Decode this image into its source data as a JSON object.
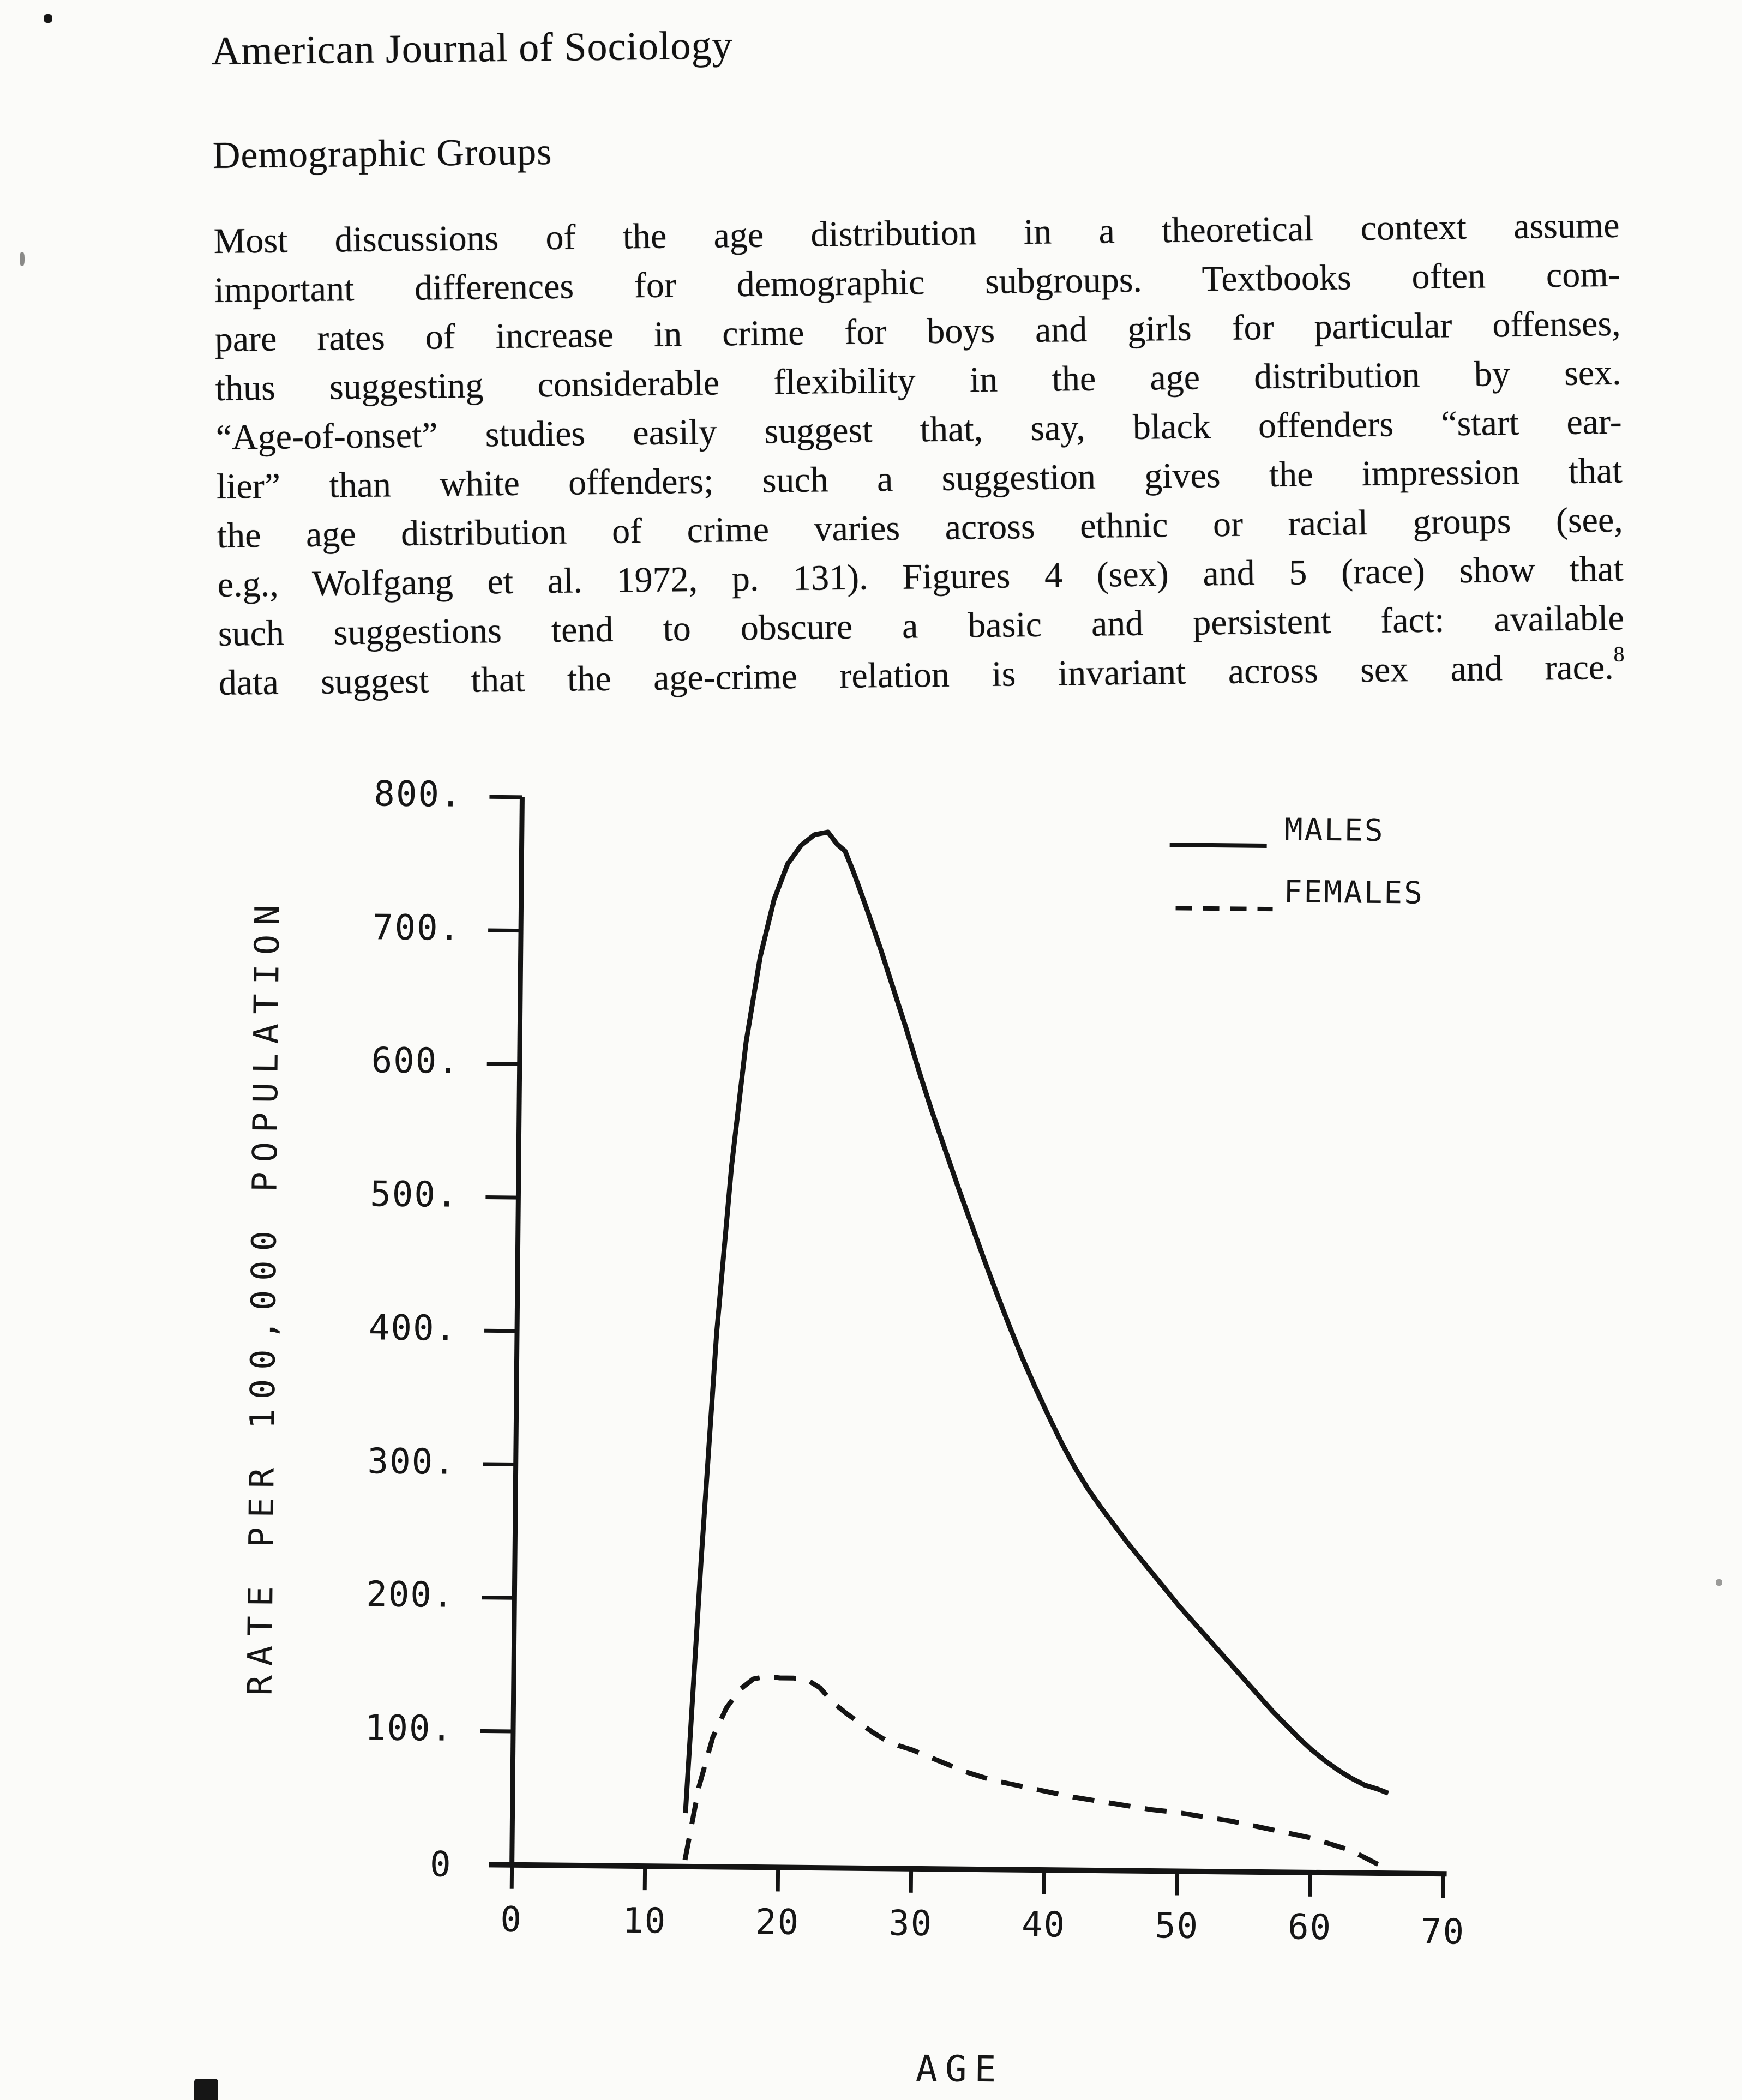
{
  "page": {
    "journal_header": "American Journal of Sociology",
    "section_heading": "Demographic Groups",
    "paragraph_lines": [
      "Most discussions of the age distribution in a theoretical context assume",
      "important differences for demographic subgroups. Textbooks often com-",
      "pare rates of increase in crime for boys and girls for particular offenses,",
      "thus suggesting considerable flexibility in the age distribution by sex.",
      "“Age-of-onset” studies easily suggest that, say, black offenders “start ear-",
      "lier” than white offenders; such a suggestion gives the impression that",
      "the age distribution of crime varies across ethnic or racial groups (see,",
      "e.g., Wolfgang et al. 1972, p. 131). Figures 4 (sex) and 5 (race) show that",
      "such suggestions tend to obscure a basic and persistent fact: available",
      "data suggest that the age-crime relation is invariant across sex and race."
    ],
    "footnote_marker": "8"
  },
  "chart_data": {
    "type": "line",
    "title": "",
    "xlabel": "AGE",
    "ylabel": "RATE PER 100,000 POPULATION",
    "xlim": [
      0,
      70
    ],
    "ylim": [
      0,
      800
    ],
    "grid": false,
    "legend_position": "upper right",
    "ink_color": "#141414",
    "x_ticks": [
      0,
      10,
      20,
      30,
      40,
      50,
      60,
      70
    ],
    "x_tick_labels": [
      "0",
      "10",
      "20",
      "30",
      "40",
      "50",
      "60",
      "70"
    ],
    "y_ticks": [
      0,
      100,
      200,
      300,
      400,
      500,
      600,
      700,
      800
    ],
    "y_tick_labels": [
      "0",
      "100.",
      "200.",
      "300.",
      "400.",
      "500.",
      "600.",
      "700.",
      "800."
    ],
    "series": [
      {
        "name": "MALES",
        "line_style": "solid",
        "points": [
          [
            13,
            40
          ],
          [
            14,
            230
          ],
          [
            15,
            400
          ],
          [
            16,
            525
          ],
          [
            17,
            618
          ],
          [
            18,
            682
          ],
          [
            19,
            725
          ],
          [
            20,
            752
          ],
          [
            21,
            766
          ],
          [
            22,
            774
          ],
          [
            23,
            776
          ],
          [
            23.7,
            767
          ],
          [
            24.3,
            762
          ],
          [
            25,
            745
          ],
          [
            26,
            718
          ],
          [
            27,
            690
          ],
          [
            28,
            660
          ],
          [
            29,
            630
          ],
          [
            30,
            598
          ],
          [
            31,
            568
          ],
          [
            32,
            540
          ],
          [
            33,
            512
          ],
          [
            34,
            485
          ],
          [
            35,
            458
          ],
          [
            36,
            432
          ],
          [
            37,
            407
          ],
          [
            38,
            383
          ],
          [
            39,
            361
          ],
          [
            40,
            340
          ],
          [
            41,
            320
          ],
          [
            42,
            302
          ],
          [
            43,
            286
          ],
          [
            44,
            272
          ],
          [
            45,
            259
          ],
          [
            46,
            246
          ],
          [
            47,
            234
          ],
          [
            48,
            222
          ],
          [
            49,
            210
          ],
          [
            50,
            198
          ],
          [
            51,
            187
          ],
          [
            52,
            176
          ],
          [
            53,
            165
          ],
          [
            54,
            154
          ],
          [
            55,
            143
          ],
          [
            56,
            132
          ],
          [
            57,
            121
          ],
          [
            58,
            111
          ],
          [
            59,
            101
          ],
          [
            60,
            92
          ],
          [
            61,
            84
          ],
          [
            62,
            77
          ],
          [
            63,
            71
          ],
          [
            64,
            66
          ],
          [
            65,
            63
          ],
          [
            65.8,
            60
          ]
        ]
      },
      {
        "name": "FEMALES",
        "line_style": "dashed",
        "points": [
          [
            13,
            5
          ],
          [
            14,
            60
          ],
          [
            15,
            97
          ],
          [
            16,
            119
          ],
          [
            17,
            133
          ],
          [
            18,
            141
          ],
          [
            19,
            143
          ],
          [
            20,
            142
          ],
          [
            21,
            142
          ],
          [
            22,
            141
          ],
          [
            23,
            135
          ],
          [
            24,
            124
          ],
          [
            25,
            116
          ],
          [
            26,
            109
          ],
          [
            27,
            102
          ],
          [
            28,
            96
          ],
          [
            29,
            92
          ],
          [
            30,
            89
          ],
          [
            31,
            85
          ],
          [
            32,
            81
          ],
          [
            33,
            77
          ],
          [
            34,
            73
          ],
          [
            35,
            70
          ],
          [
            36,
            67
          ],
          [
            37,
            65
          ],
          [
            38,
            63
          ],
          [
            39,
            61
          ],
          [
            40,
            59
          ],
          [
            41,
            57
          ],
          [
            42,
            55
          ],
          [
            44,
            52
          ],
          [
            46,
            49
          ],
          [
            48,
            46
          ],
          [
            50,
            44
          ],
          [
            52,
            41
          ],
          [
            54,
            38
          ],
          [
            56,
            34
          ],
          [
            58,
            30
          ],
          [
            60,
            26
          ],
          [
            61,
            23
          ],
          [
            62,
            20
          ],
          [
            63,
            17
          ],
          [
            64,
            12
          ],
          [
            65,
            7
          ],
          [
            65.8,
            4
          ]
        ]
      }
    ]
  }
}
